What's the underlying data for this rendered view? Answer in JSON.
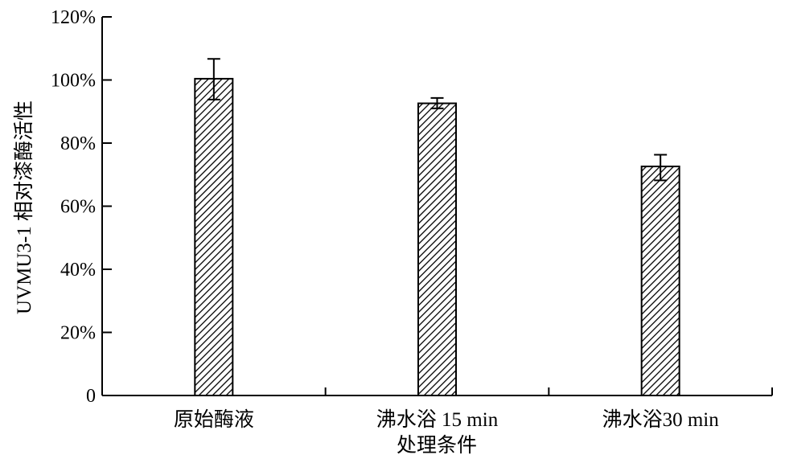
{
  "chart_data": {
    "type": "bar",
    "title": "",
    "xlabel": "处理条件",
    "ylabel": "UVMU3-1 相对漆酶活性",
    "categories": [
      "原始酶液",
      "沸水浴 15 min",
      "沸水浴30 min"
    ],
    "values": [
      100.4,
      92.6,
      72.6
    ],
    "error_low": [
      93.8,
      91.0,
      68.2
    ],
    "error_high": [
      106.7,
      94.3,
      76.3
    ],
    "ylim": [
      0,
      120
    ],
    "yticks": [
      0,
      20,
      40,
      60,
      80,
      100,
      120
    ],
    "ytick_labels": [
      "0",
      "20%",
      "40%",
      "60%",
      "80%",
      "100%",
      "120%"
    ],
    "bar_pattern": "diagonal-hatch",
    "grid": false,
    "colors": {
      "bar_stroke": "#000000",
      "hatch": "#000000",
      "background": "#ffffff"
    }
  }
}
